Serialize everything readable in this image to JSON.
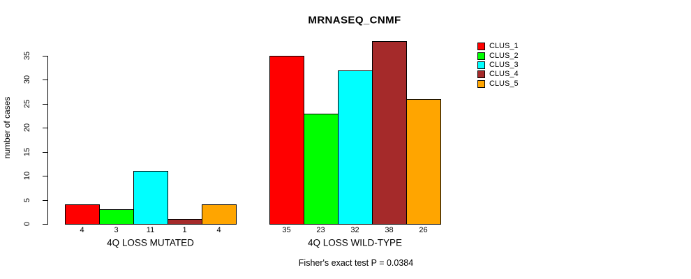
{
  "chart_data": {
    "type": "bar",
    "title": "MRNASEQ_CNMF",
    "ylabel": "number of cases",
    "xlabel": "",
    "caption": "Fisher's exact test P = 0.0384",
    "categories": [
      "4Q LOSS MUTATED",
      "4Q LOSS WILD-TYPE"
    ],
    "series": [
      {
        "name": "CLUS_1",
        "color": "#FF0000",
        "values": [
          4,
          35
        ]
      },
      {
        "name": "CLUS_2",
        "color": "#00FF00",
        "values": [
          3,
          23
        ]
      },
      {
        "name": "CLUS_3",
        "color": "#00FFFF",
        "values": [
          11,
          32
        ]
      },
      {
        "name": "CLUS_4",
        "color": "#A52A2A",
        "values": [
          1,
          38
        ]
      },
      {
        "name": "CLUS_5",
        "color": "#FFA500",
        "values": [
          4,
          26
        ]
      }
    ],
    "yticks": [
      0,
      5,
      10,
      15,
      20,
      25,
      30,
      35
    ],
    "ylim": [
      0,
      38
    ],
    "grid": false,
    "show_bar_value_labels": true,
    "legend_position": "right",
    "axis_color": "#000000",
    "bar_border_color": "#000000"
  }
}
